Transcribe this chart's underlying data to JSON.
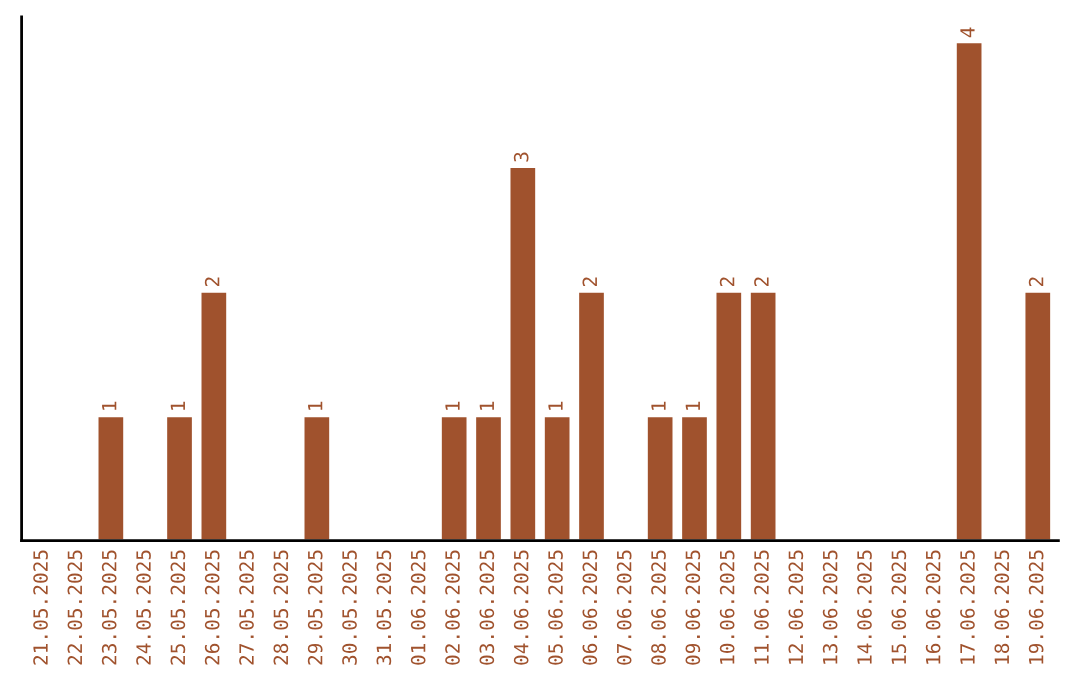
{
  "chart_data": {
    "type": "bar",
    "color": "#a0522d",
    "categories": [
      "21.05.2025",
      "22.05.2025",
      "23.05.2025",
      "24.05.2025",
      "25.05.2025",
      "26.05.2025",
      "27.05.2025",
      "28.05.2025",
      "29.05.2025",
      "30.05.2025",
      "31.05.2025",
      "01.06.2025",
      "02.06.2025",
      "03.06.2025",
      "04.06.2025",
      "05.06.2025",
      "06.06.2025",
      "07.06.2025",
      "08.06.2025",
      "09.06.2025",
      "10.06.2025",
      "11.06.2025",
      "12.06.2025",
      "13.06.2025",
      "14.06.2025",
      "15.06.2025",
      "16.06.2025",
      "17.06.2025",
      "18.06.2025",
      "19.06.2025"
    ],
    "values": [
      null,
      null,
      1,
      null,
      1,
      2,
      null,
      null,
      1,
      null,
      null,
      null,
      1,
      1,
      3,
      1,
      2,
      null,
      1,
      1,
      2,
      2,
      null,
      null,
      null,
      null,
      null,
      4,
      null,
      2
    ],
    "value_labels": [
      null,
      null,
      "1",
      null,
      "1",
      "2",
      null,
      null,
      "1",
      null,
      null,
      null,
      "1",
      "1",
      "3",
      "1",
      "2",
      null,
      "1",
      "1",
      "2",
      "2",
      null,
      null,
      null,
      null,
      null,
      "4",
      null,
      "2"
    ],
    "ylim": [
      0,
      4.2
    ],
    "tick_labels": "x",
    "grid": false
  }
}
